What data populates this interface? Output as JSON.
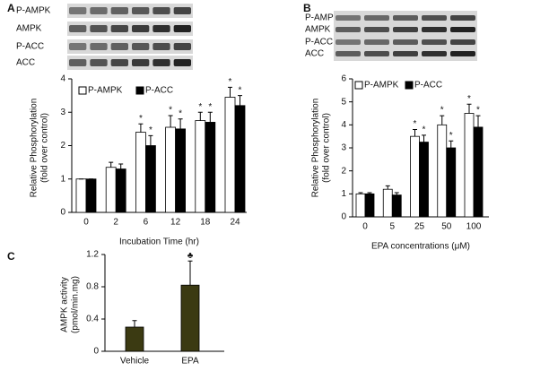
{
  "chart_data": [
    {
      "type": "bar",
      "panel": "A",
      "blot_labels": [
        "P-AMPK",
        "AMPK",
        "P-ACC",
        "ACC"
      ],
      "x_label": "Incubation Time (hr)",
      "y_label": [
        "Relative Phosphorylation",
        "(fold over control)"
      ],
      "categories": [
        "0",
        "2",
        "6",
        "12",
        "18",
        "24"
      ],
      "ylim": [
        0,
        4
      ],
      "yticks": [
        0,
        1,
        2,
        3,
        4
      ],
      "series": [
        {
          "name": "P-AMPK",
          "color": "#ffffff",
          "values": [
            1,
            1.35,
            2.4,
            2.55,
            2.75,
            3.45
          ],
          "errors": [
            0,
            0.15,
            0.25,
            0.35,
            0.25,
            0.3
          ],
          "significance": [
            null,
            null,
            "*",
            "*",
            "*",
            "*"
          ]
        },
        {
          "name": "P-ACC",
          "color": "#000000",
          "values": [
            1,
            1.3,
            2.0,
            2.5,
            2.7,
            3.2
          ],
          "errors": [
            0,
            0.15,
            0.3,
            0.3,
            0.3,
            0.3
          ],
          "significance": [
            null,
            null,
            "*",
            "*",
            "*",
            "*"
          ]
        }
      ]
    },
    {
      "type": "bar",
      "panel": "B",
      "blot_labels": [
        "P-AMPK",
        "AMPK",
        "P-ACC",
        "ACC"
      ],
      "x_label": "EPA concentrations (μM)",
      "y_label": [
        "Relative Phosphorylation",
        "(fold over control)"
      ],
      "categories": [
        "0",
        "5",
        "25",
        "50",
        "100"
      ],
      "ylim": [
        0,
        6
      ],
      "yticks": [
        0,
        1,
        2,
        3,
        4,
        5,
        6
      ],
      "series": [
        {
          "name": "P-AMPK",
          "color": "#ffffff",
          "values": [
            1,
            1.2,
            3.5,
            4.0,
            4.5
          ],
          "errors": [
            0.05,
            0.15,
            0.3,
            0.4,
            0.4
          ],
          "significance": [
            null,
            null,
            "*",
            "*",
            "*"
          ]
        },
        {
          "name": "P-ACC",
          "color": "#000000",
          "values": [
            1,
            0.95,
            3.25,
            3.0,
            3.9
          ],
          "errors": [
            0.05,
            0.1,
            0.3,
            0.3,
            0.5
          ],
          "significance": [
            null,
            null,
            "*",
            "*",
            "*"
          ]
        }
      ]
    },
    {
      "type": "bar",
      "panel": "C",
      "y_label": [
        "AMPK activity",
        "(pmol/min.mg)"
      ],
      "categories": [
        "Vehicle",
        "EPA"
      ],
      "ylim": [
        0,
        1.2
      ],
      "yticks": [
        0,
        0.4,
        0.8,
        1.2
      ],
      "series": [
        {
          "color": "#3b3a12",
          "values": [
            0.3,
            0.82
          ],
          "errors": [
            0.08,
            0.3
          ],
          "significance": [
            null,
            "♣"
          ]
        }
      ]
    }
  ]
}
